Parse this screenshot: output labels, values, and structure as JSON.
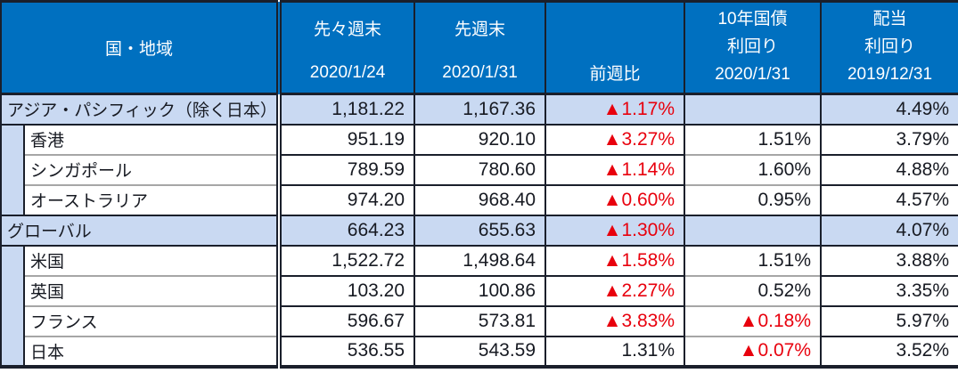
{
  "table": {
    "header": {
      "region": "国・地域",
      "prev2": {
        "line1": "先々週末",
        "line2": "2020/1/24"
      },
      "prev1": {
        "line1": "先週末",
        "line2": "2020/1/31"
      },
      "wow": {
        "line1": "前週比"
      },
      "bond": {
        "line1": "10年国債",
        "line2": "利回り",
        "line3": "2020/1/31"
      },
      "div": {
        "line1": "配当",
        "line2": "利回り",
        "line3": "2019/12/31"
      }
    },
    "rows": [
      {
        "type": "group",
        "label": "アジア・パシフィック（除く日本）",
        "prev2": "1,181.22",
        "prev1": "1,167.36",
        "wow": "▲1.17%",
        "wow_negative": true,
        "bond": "",
        "bond_negative": false,
        "dividend": "4.49%"
      },
      {
        "type": "sub",
        "label": "香港",
        "prev2": "951.19",
        "prev1": "920.10",
        "wow": "▲3.27%",
        "wow_negative": true,
        "bond": "1.51%",
        "bond_negative": false,
        "dividend": "3.79%"
      },
      {
        "type": "sub",
        "label": "シンガポール",
        "prev2": "789.59",
        "prev1": "780.60",
        "wow": "▲1.14%",
        "wow_negative": true,
        "bond": "1.60%",
        "bond_negative": false,
        "dividend": "4.88%"
      },
      {
        "type": "sub",
        "label": "オーストラリア",
        "prev2": "974.20",
        "prev1": "968.40",
        "wow": "▲0.60%",
        "wow_negative": true,
        "bond": "0.95%",
        "bond_negative": false,
        "dividend": "4.57%"
      },
      {
        "type": "group",
        "label": "グローバル",
        "prev2": "664.23",
        "prev1": "655.63",
        "wow": "▲1.30%",
        "wow_negative": true,
        "bond": "",
        "bond_negative": false,
        "dividend": "4.07%"
      },
      {
        "type": "sub",
        "label": "米国",
        "prev2": "1,522.72",
        "prev1": "1,498.64",
        "wow": "▲1.58%",
        "wow_negative": true,
        "bond": "1.51%",
        "bond_negative": false,
        "dividend": "3.88%"
      },
      {
        "type": "sub",
        "label": "英国",
        "prev2": "103.20",
        "prev1": "100.86",
        "wow": "▲2.27%",
        "wow_negative": true,
        "bond": "0.52%",
        "bond_negative": false,
        "dividend": "3.35%"
      },
      {
        "type": "sub",
        "label": "フランス",
        "prev2": "596.67",
        "prev1": "573.81",
        "wow": "▲3.83%",
        "wow_negative": true,
        "bond": "▲0.18%",
        "bond_negative": true,
        "dividend": "5.97%"
      },
      {
        "type": "sub",
        "label": "日本",
        "prev2": "536.55",
        "prev1": "543.59",
        "wow": "1.31%",
        "wow_negative": false,
        "bond": "▲0.07%",
        "bond_negative": true,
        "dividend": "3.52%"
      }
    ],
    "colors": {
      "header_bg": "#0070c0",
      "group_row_bg": "#c9d9f2",
      "negative_red": "#e8000d",
      "border_dark": "#1a1f2b",
      "border_gray": "#a6a6a6",
      "text": "#171a22"
    }
  }
}
